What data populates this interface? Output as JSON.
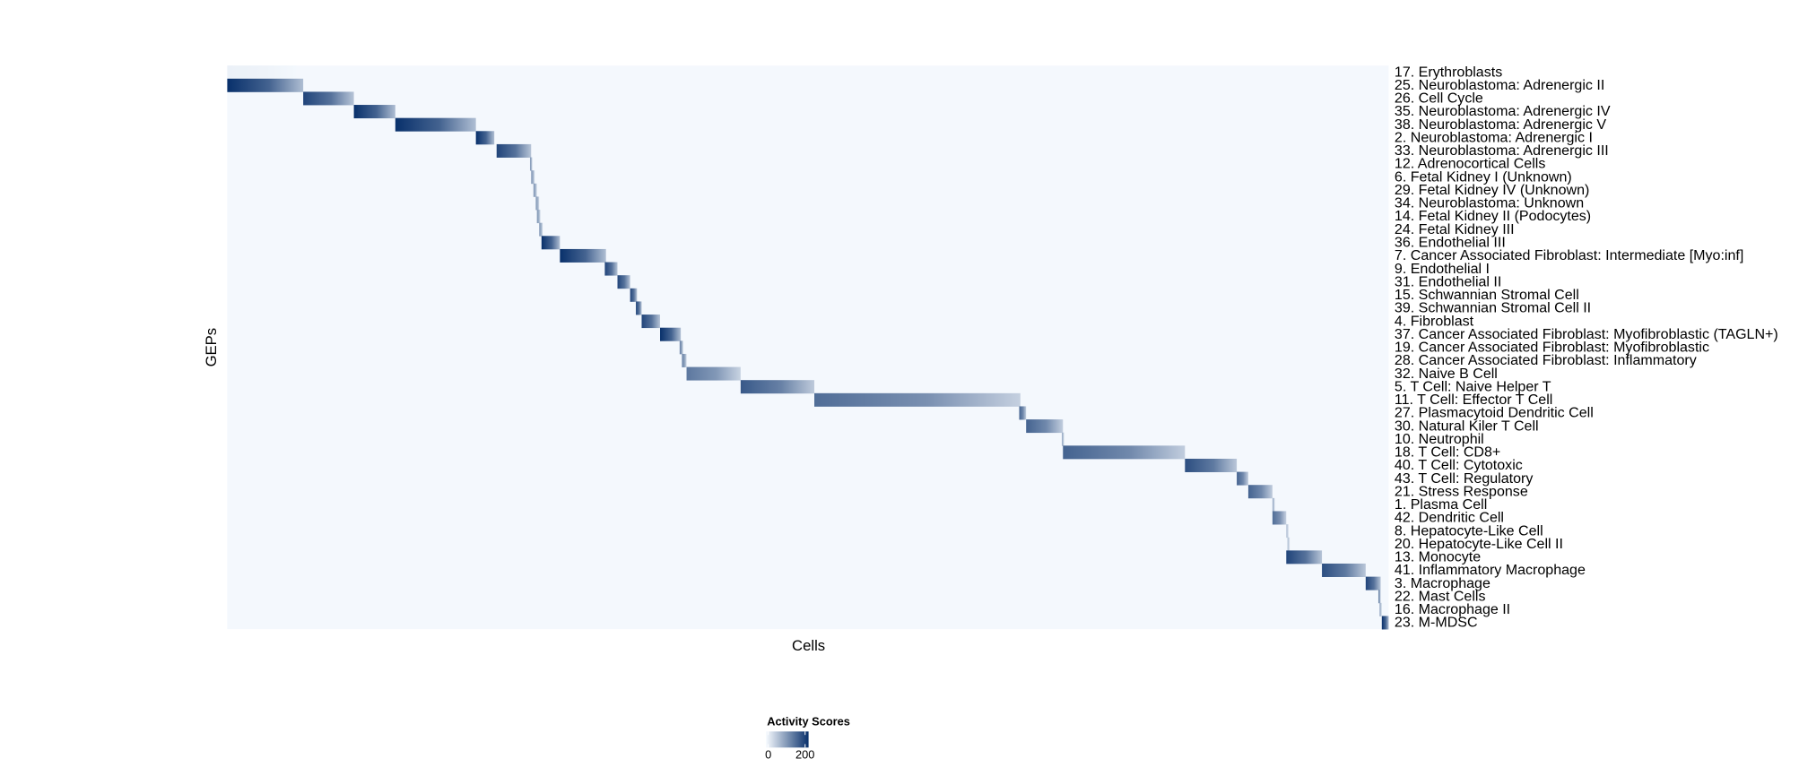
{
  "chart_data": {
    "type": "heatmap",
    "xlabel": "Cells",
    "ylabel": "GEPs",
    "categories": [
      "17. Erythroblasts",
      "25. Neuroblastoma: Adrenergic II",
      "26. Cell Cycle",
      "35. Neuroblastoma: Adrenergic IV",
      "38. Neuroblastoma: Adrenergic V",
      "2. Neuroblastoma: Adrenergic I",
      "33. Neuroblastoma: Adrenergic III",
      "12. Adrenocortical Cells",
      "6. Fetal Kidney I (Unknown)",
      "29. Fetal Kidney IV (Unknown)",
      "34. Neuroblastoma: Unknown",
      "14. Fetal Kidney II (Podocytes)",
      "24. Fetal Kidney III",
      "36. Endothelial III",
      "7. Cancer Associated Fibroblast: Intermediate [Myo:inf]",
      "9. Endothelial I",
      "31. Endothelial II",
      "15. Schwannian Stromal Cell",
      "39. Schwannian Stromal Cell II",
      "4. Fibroblast",
      "37. Cancer Associated Fibroblast: Myofibroblastic (TAGLN+)",
      "19. Cancer Associated Fibroblast: Myofibroblastic",
      "28. Cancer Associated Fibroblast: Inflammatory",
      "32. Naive B Cell",
      "5. T Cell: Naive Helper T",
      "11. T Cell: Effector T Cell",
      "27. Plasmacytoid Dendritic Cell",
      "30. Natural Kiler T Cell",
      "10. Neutrophil",
      "18. T Cell: CD8+",
      "40. T Cell: Cytotoxic",
      "43. T Cell: Regulatory",
      "21. Stress Response",
      "1. Plasma Cell",
      "42. Dendritic Cell",
      "8. Hepatocyte-Like Cell",
      "20. Hepatocyte-Like Cell II",
      "13. Monocyte",
      "41. Inflammatory Macrophage",
      "3. Macrophage",
      "22. Mast Cells",
      "16. Macrophage II",
      "23. M-MDSC"
    ],
    "values": [
      10,
      200,
      180,
      200,
      200,
      200,
      180,
      100,
      100,
      100,
      100,
      100,
      100,
      200,
      200,
      180,
      180,
      180,
      180,
      180,
      200,
      120,
      120,
      130,
      160,
      140,
      150,
      150,
      80,
      150,
      170,
      150,
      150,
      80,
      140,
      60,
      60,
      180,
      170,
      180,
      120,
      80,
      200
    ],
    "x_ranges": [
      [
        0,
        60
      ],
      [
        0,
        66
      ],
      [
        66,
        110
      ],
      [
        110,
        146
      ],
      [
        146,
        216
      ],
      [
        216,
        232
      ],
      [
        234,
        264
      ],
      [
        263,
        265
      ],
      [
        264,
        267
      ],
      [
        266,
        269
      ],
      [
        268,
        271
      ],
      [
        269,
        272
      ],
      [
        271,
        274
      ],
      [
        273,
        289
      ],
      [
        289,
        329
      ],
      [
        328,
        339
      ],
      [
        339,
        350
      ],
      [
        350,
        356
      ],
      [
        355,
        360
      ],
      [
        360,
        376
      ],
      [
        376,
        394
      ],
      [
        393,
        396
      ],
      [
        395,
        399
      ],
      [
        399,
        446
      ],
      [
        446,
        510
      ],
      [
        510,
        689
      ],
      [
        688,
        694
      ],
      [
        694,
        726
      ],
      [
        725,
        727
      ],
      [
        726,
        832
      ],
      [
        832,
        877
      ],
      [
        877,
        887
      ],
      [
        887,
        908
      ],
      [
        908,
        910
      ],
      [
        908,
        920
      ],
      [
        920,
        922
      ],
      [
        921,
        923
      ],
      [
        920,
        951
      ],
      [
        951,
        989
      ],
      [
        989,
        1002
      ],
      [
        1000,
        1002
      ],
      [
        1001,
        1003
      ],
      [
        1003,
        1009
      ]
    ],
    "xlim": [
      0,
      1009
    ],
    "colorbar_title": "Activity Scores",
    "clim": [
      0,
      200
    ],
    "cticks": [
      0,
      200
    ],
    "colors": [
      "#f7fbff",
      "#08306b"
    ]
  }
}
